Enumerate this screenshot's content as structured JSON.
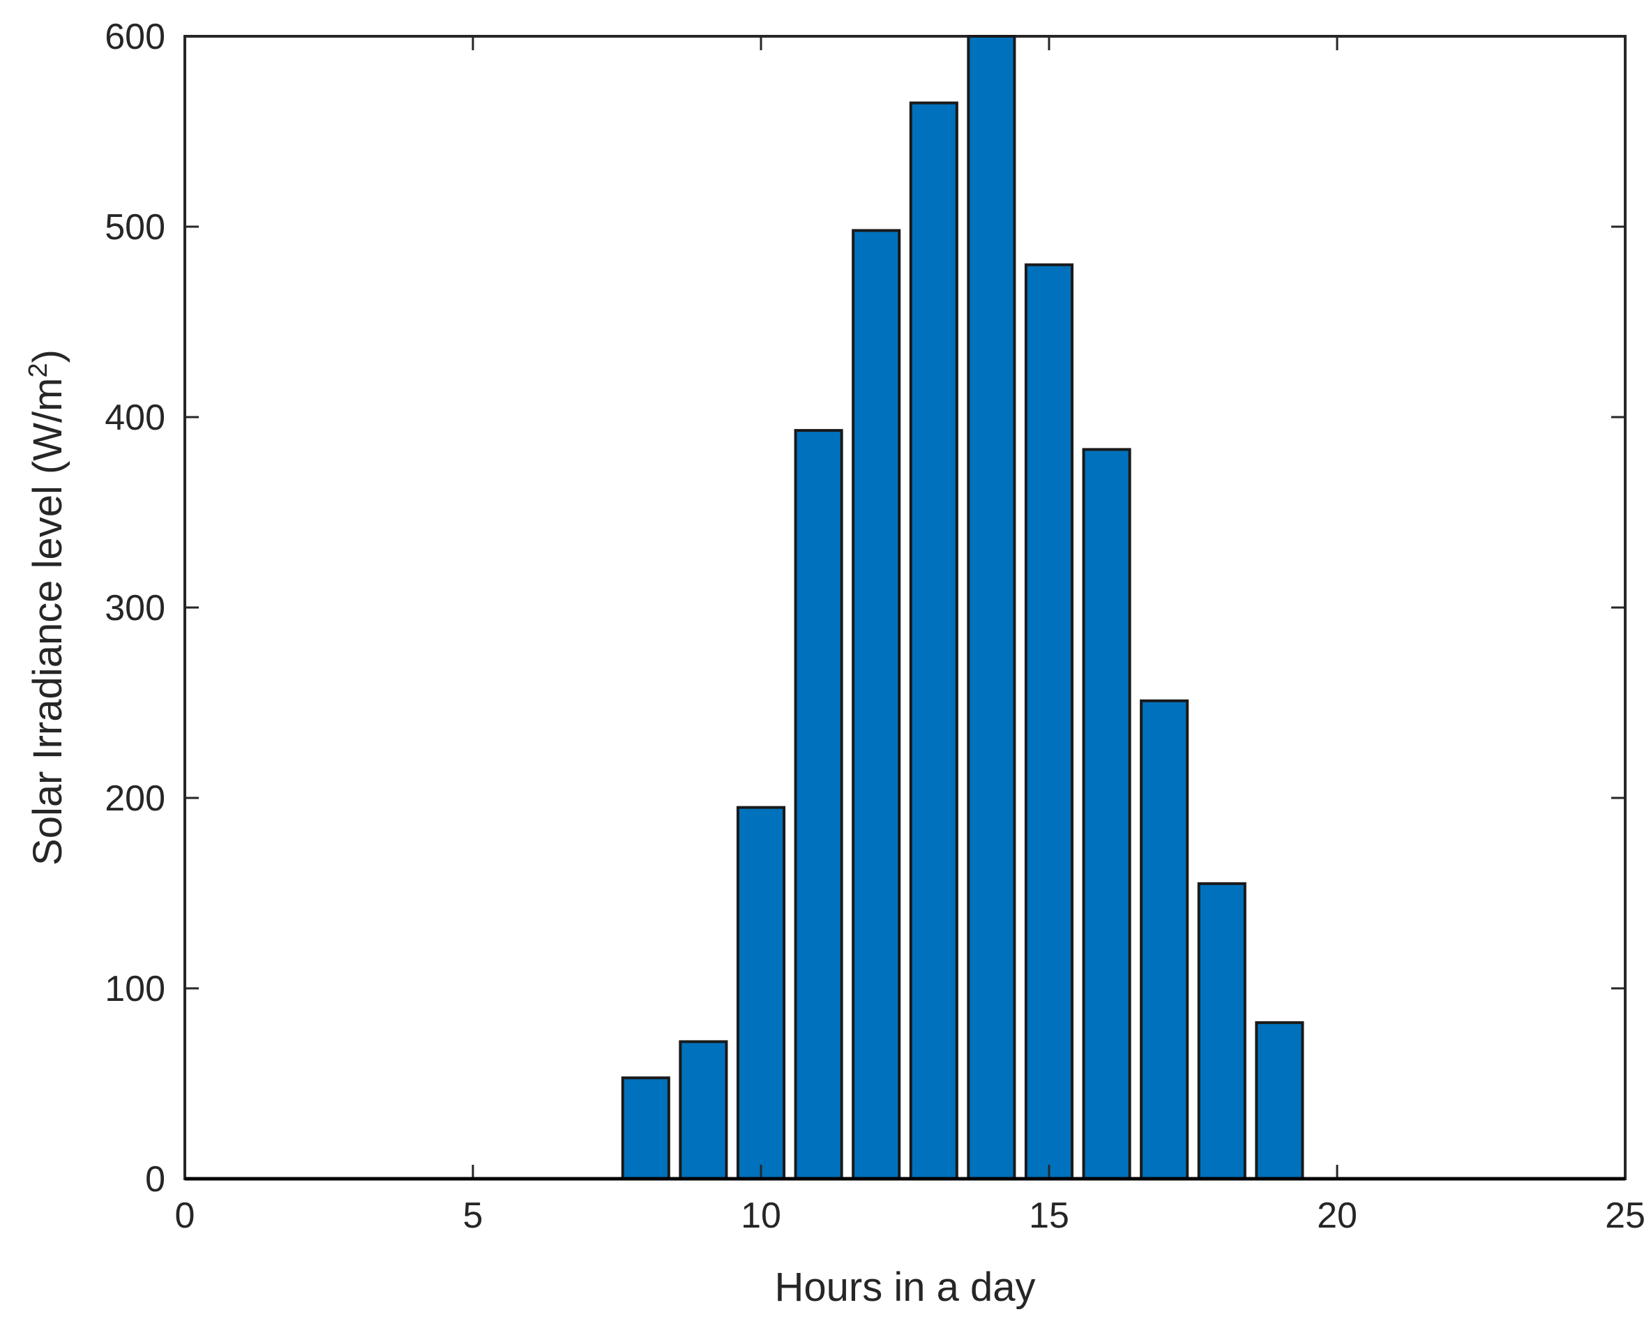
{
  "chart_data": {
    "type": "bar",
    "title": "",
    "xlabel": "Hours in a day",
    "ylabel": {
      "main": "Solar Irradiance level (W/m",
      "superscript": "2",
      "close": ")"
    },
    "xlim": [
      0,
      25
    ],
    "ylim": [
      0,
      600
    ],
    "xticks": [
      0,
      5,
      10,
      15,
      20,
      25
    ],
    "yticks": [
      0,
      100,
      200,
      300,
      400,
      500,
      600
    ],
    "grid": false,
    "bar_color": "#0072BD",
    "bar_edge_color": "#1a1a1a",
    "x": [
      8,
      9,
      10,
      11,
      12,
      13,
      14,
      15,
      16,
      17,
      18,
      19
    ],
    "values": [
      53,
      72,
      195,
      393,
      498,
      565,
      600,
      480,
      383,
      251,
      155,
      82
    ]
  }
}
